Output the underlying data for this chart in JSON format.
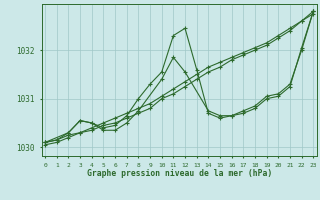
{
  "title": "Graphe pression niveau de la mer (hPa)",
  "xlabel_hours": [
    0,
    1,
    2,
    3,
    4,
    5,
    6,
    7,
    8,
    9,
    10,
    11,
    12,
    13,
    14,
    15,
    16,
    17,
    18,
    19,
    20,
    21,
    22,
    23
  ],
  "series": [
    {
      "x": [
        0,
        1,
        2,
        3,
        4,
        5,
        6,
        7,
        8,
        9,
        10,
        11,
        12,
        13,
        14,
        15,
        16,
        17,
        18,
        19,
        20,
        21,
        22,
        23
      ],
      "y": [
        1030.1,
        1030.15,
        1030.25,
        1030.3,
        1030.4,
        1030.5,
        1030.6,
        1030.7,
        1030.8,
        1030.9,
        1031.05,
        1031.2,
        1031.35,
        1031.5,
        1031.65,
        1031.75,
        1031.85,
        1031.95,
        1032.05,
        1032.15,
        1032.3,
        1032.45,
        1032.6,
        1032.8
      ]
    },
    {
      "x": [
        0,
        1,
        2,
        3,
        4,
        5,
        6,
        7,
        8,
        9,
        10,
        11,
        12,
        13,
        14,
        15,
        16,
        17,
        18,
        19,
        20,
        21,
        22,
        23
      ],
      "y": [
        1030.1,
        1030.15,
        1030.3,
        1030.55,
        1030.5,
        1030.4,
        1030.45,
        1030.65,
        1031.0,
        1031.3,
        1031.55,
        1032.3,
        1032.45,
        1031.6,
        1030.7,
        1030.6,
        1030.65,
        1030.75,
        1030.85,
        1031.05,
        1031.1,
        1031.3,
        1032.0,
        1032.8
      ]
    },
    {
      "x": [
        0,
        2,
        3,
        4,
        5,
        6,
        7,
        8,
        10,
        11,
        12,
        14,
        15,
        16,
        17,
        18,
        19,
        20,
        21,
        22,
        23
      ],
      "y": [
        1030.1,
        1030.3,
        1030.55,
        1030.5,
        1030.35,
        1030.35,
        1030.5,
        1030.75,
        1031.4,
        1031.85,
        1031.55,
        1030.75,
        1030.65,
        1030.65,
        1030.7,
        1030.8,
        1031.0,
        1031.05,
        1031.25,
        1032.05,
        1032.8
      ]
    },
    {
      "x": [
        0,
        1,
        2,
        3,
        4,
        5,
        6,
        7,
        8,
        9,
        10,
        11,
        12,
        13,
        14,
        15,
        16,
        17,
        18,
        19,
        20,
        21,
        22,
        23
      ],
      "y": [
        1030.05,
        1030.1,
        1030.2,
        1030.3,
        1030.35,
        1030.45,
        1030.5,
        1030.6,
        1030.7,
        1030.8,
        1031.0,
        1031.1,
        1031.25,
        1031.4,
        1031.55,
        1031.65,
        1031.8,
        1031.9,
        1032.0,
        1032.1,
        1032.25,
        1032.4,
        1032.6,
        1032.75
      ]
    }
  ],
  "line_color": "#2d6a2d",
  "marker": "+",
  "bg_color": "#cce8e8",
  "grid_color": "#a0c8c8",
  "tick_color": "#2d6a2d",
  "title_color": "#2d6a2d",
  "ylim": [
    1029.82,
    1032.95
  ],
  "yticks": [
    1030,
    1031,
    1032
  ],
  "xlim": [
    -0.3,
    23.3
  ],
  "fig_bg": "#cce8e8"
}
